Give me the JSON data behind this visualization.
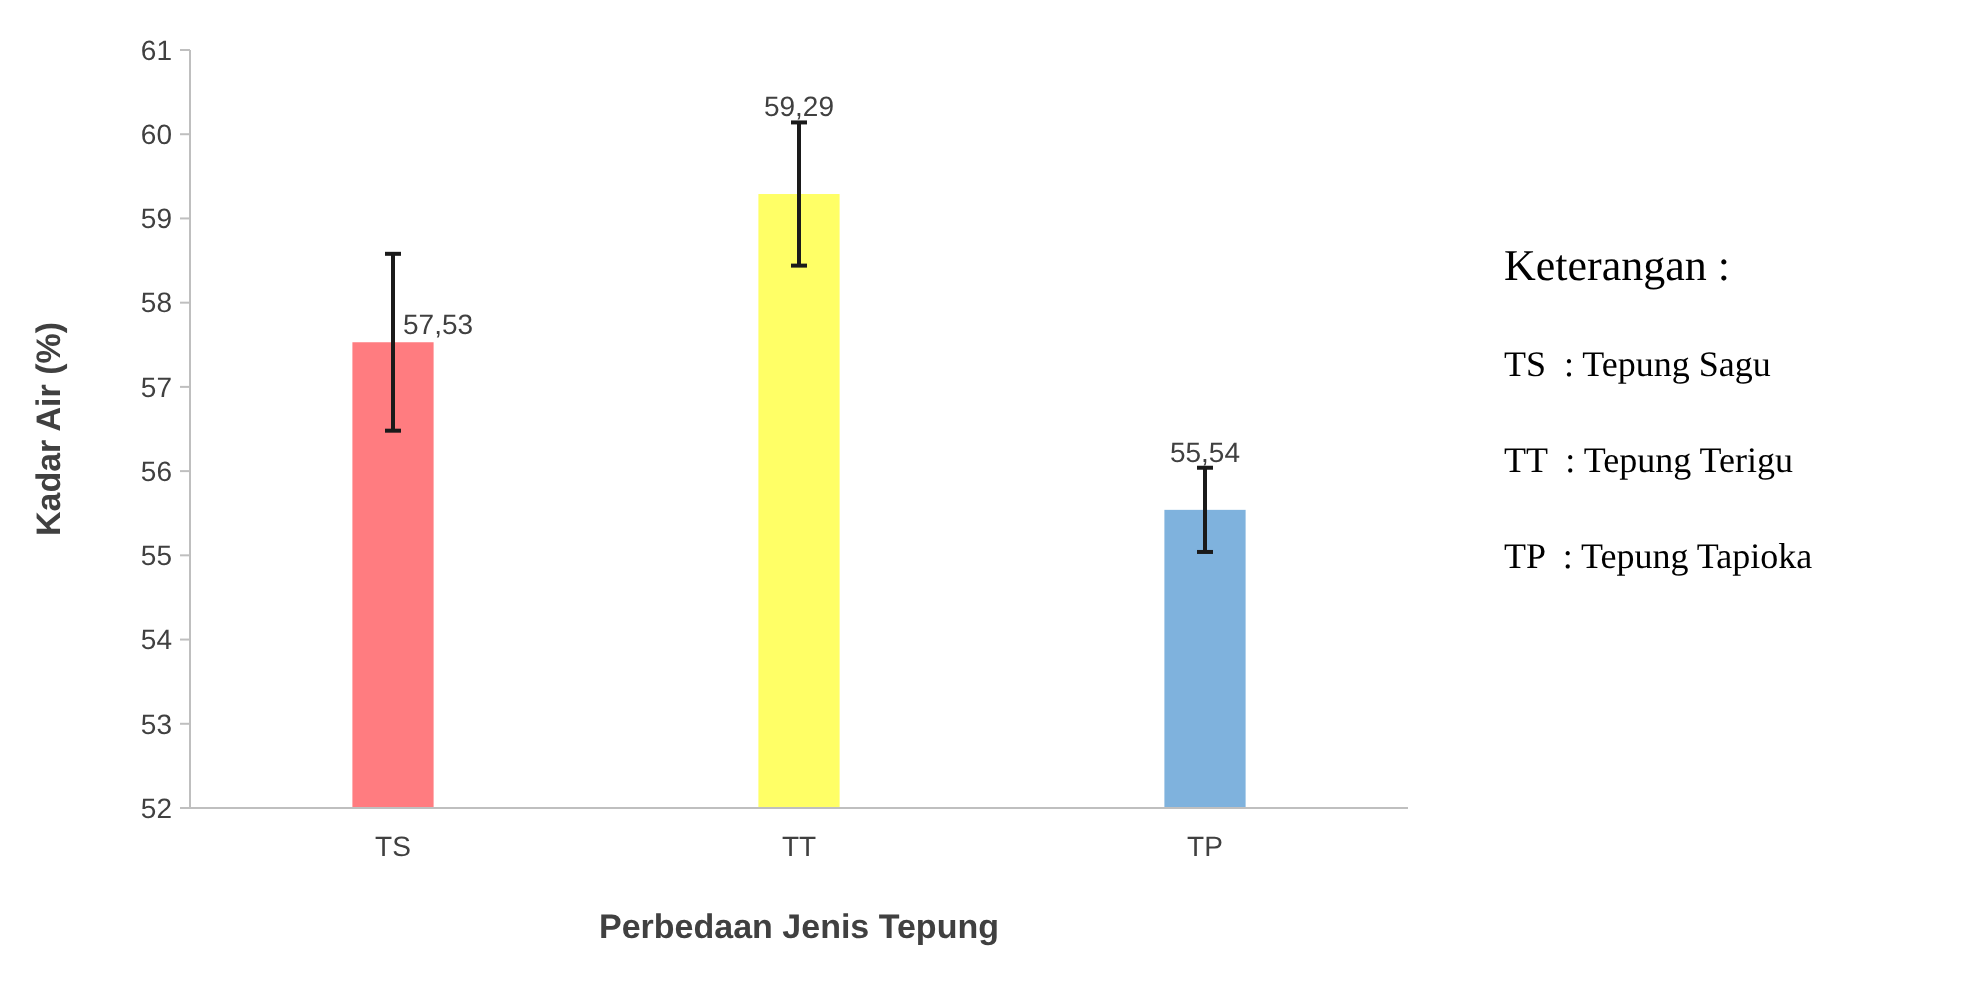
{
  "chart_data": {
    "type": "bar",
    "xlabel": "Perbedaan Jenis Tepung",
    "ylabel": "Kadar Air (%)",
    "categories": [
      "TS",
      "TT",
      "TP"
    ],
    "values": [
      57.53,
      59.29,
      55.54
    ],
    "colors": [
      "#ff7c80",
      "#ffff66",
      "#7fb2dd"
    ],
    "errors": [
      1.05,
      0.85,
      0.5
    ],
    "value_labels": [
      "57,53",
      "59,29",
      "55,54"
    ],
    "ylim": [
      52,
      61
    ],
    "yticks": [
      52,
      53,
      54,
      55,
      56,
      57,
      58,
      59,
      60,
      61
    ],
    "grid": false,
    "annotations": [
      "Keterangan :",
      "TS  : Tepung Sagu",
      "TT  : Tepung Terigu",
      "TP  : Tepung Tapioka"
    ]
  }
}
